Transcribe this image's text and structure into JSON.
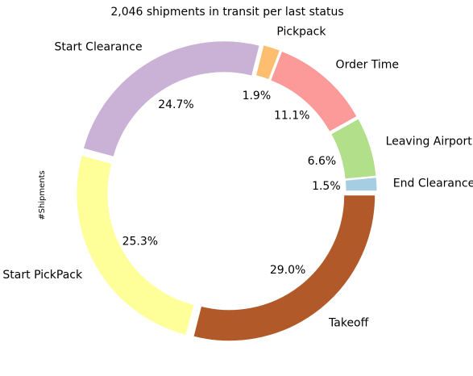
{
  "chart_data": {
    "type": "pie",
    "variant": "donut",
    "title": "2,046 shipments in transit per last status",
    "ylabel": "#Shipments",
    "legend": "none",
    "slices": [
      {
        "label": "End Clearance",
        "percent_label": "1.5%",
        "value": 1.5,
        "color": "#a6cee3"
      },
      {
        "label": "Leaving Airport",
        "percent_label": "6.6%",
        "value": 6.6,
        "color": "#b2df8a"
      },
      {
        "label": "Order Time",
        "percent_label": "11.1%",
        "value": 11.1,
        "color": "#fb9a99"
      },
      {
        "label": "Pickpack",
        "percent_label": "1.9%",
        "value": 1.9,
        "color": "#fdbf6f"
      },
      {
        "label": "Start Clearance",
        "percent_label": "24.7%",
        "value": 24.7,
        "color": "#cab2d6"
      },
      {
        "label": "Start PickPack",
        "percent_label": "25.3%",
        "value": 25.3,
        "color": "#ffff99"
      },
      {
        "label": "Takeoff",
        "percent_label": "29.0%",
        "value": 29.0,
        "color": "#b15928"
      }
    ]
  }
}
